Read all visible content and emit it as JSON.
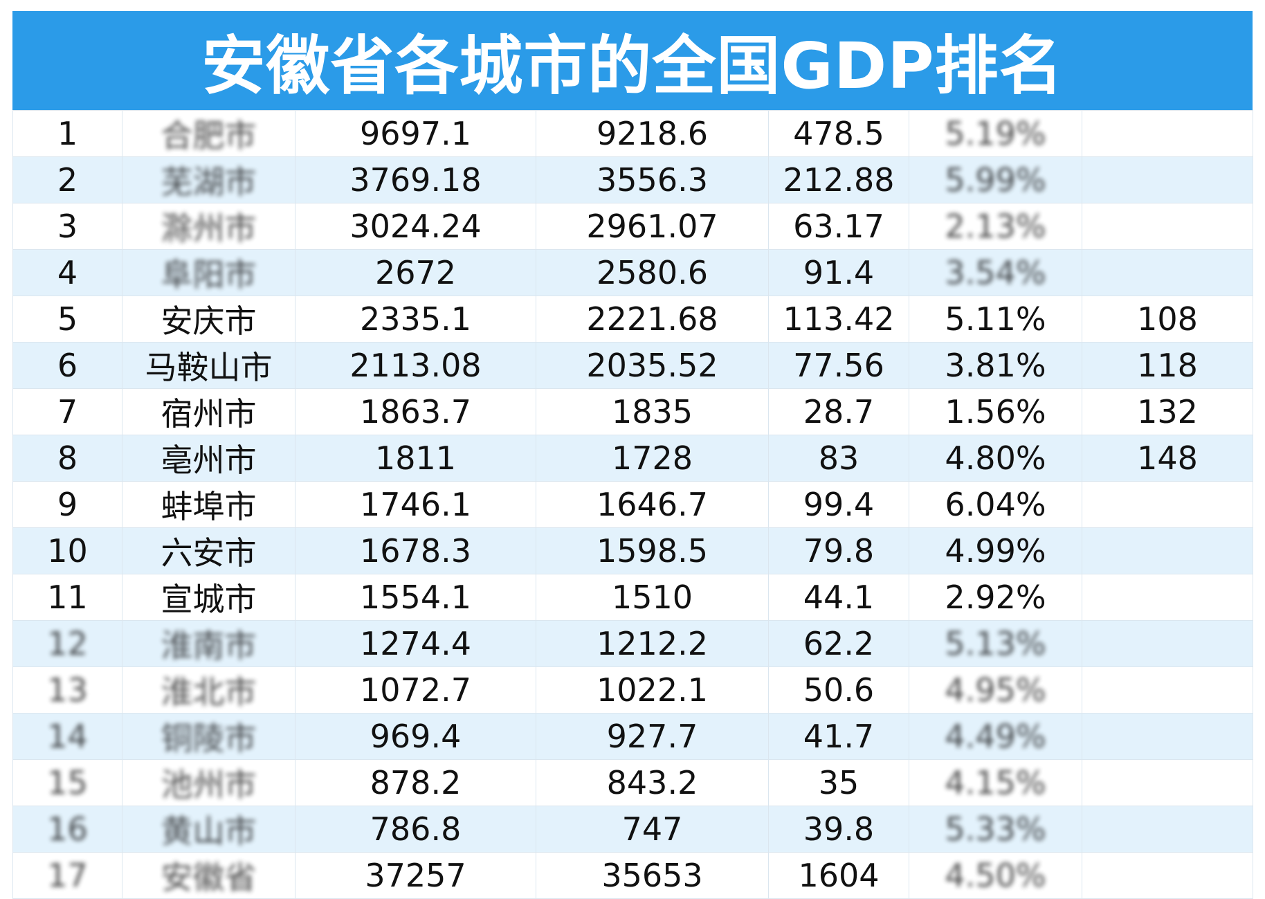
{
  "title": "安徽省各城市的全国GDP排名",
  "colors": {
    "header_bg": "#2b9be8",
    "row_alt_bg": "#e3f2fc",
    "border": "#dbe6ef"
  },
  "rows": [
    {
      "rank": "1",
      "city": "合肥市",
      "gdp_a": "9697.1",
      "gdp_b": "9218.6",
      "increase": "478.5",
      "rate": "5.19%",
      "national_rank": "",
      "blurred": [
        "city",
        "rate",
        "national_rank"
      ]
    },
    {
      "rank": "2",
      "city": "芜湖市",
      "gdp_a": "3769.18",
      "gdp_b": "3556.3",
      "increase": "212.88",
      "rate": "5.99%",
      "national_rank": "",
      "blurred": [
        "city",
        "rate",
        "national_rank"
      ]
    },
    {
      "rank": "3",
      "city": "滁州市",
      "gdp_a": "3024.24",
      "gdp_b": "2961.07",
      "increase": "63.17",
      "rate": "2.13%",
      "national_rank": "",
      "blurred": [
        "city",
        "rate",
        "national_rank"
      ]
    },
    {
      "rank": "4",
      "city": "阜阳市",
      "gdp_a": "2672",
      "gdp_b": "2580.6",
      "increase": "91.4",
      "rate": "3.54%",
      "national_rank": "",
      "blurred": [
        "city",
        "rate",
        "national_rank"
      ]
    },
    {
      "rank": "5",
      "city": "安庆市",
      "gdp_a": "2335.1",
      "gdp_b": "2221.68",
      "increase": "113.42",
      "rate": "5.11%",
      "national_rank": "108",
      "blurred": []
    },
    {
      "rank": "6",
      "city": "马鞍山市",
      "gdp_a": "2113.08",
      "gdp_b": "2035.52",
      "increase": "77.56",
      "rate": "3.81%",
      "national_rank": "118",
      "blurred": []
    },
    {
      "rank": "7",
      "city": "宿州市",
      "gdp_a": "1863.7",
      "gdp_b": "1835",
      "increase": "28.7",
      "rate": "1.56%",
      "national_rank": "132",
      "blurred": []
    },
    {
      "rank": "8",
      "city": "亳州市",
      "gdp_a": "1811",
      "gdp_b": "1728",
      "increase": "83",
      "rate": "4.80%",
      "national_rank": "148",
      "blurred": []
    },
    {
      "rank": "9",
      "city": "蚌埠市",
      "gdp_a": "1746.1",
      "gdp_b": "1646.7",
      "increase": "99.4",
      "rate": "6.04%",
      "national_rank": "",
      "blurred": []
    },
    {
      "rank": "10",
      "city": "六安市",
      "gdp_a": "1678.3",
      "gdp_b": "1598.5",
      "increase": "79.8",
      "rate": "4.99%",
      "national_rank": "",
      "blurred": []
    },
    {
      "rank": "11",
      "city": "宣城市",
      "gdp_a": "1554.1",
      "gdp_b": "1510",
      "increase": "44.1",
      "rate": "2.92%",
      "national_rank": "",
      "blurred": []
    },
    {
      "rank": "12",
      "city": "淮南市",
      "gdp_a": "1274.4",
      "gdp_b": "1212.2",
      "increase": "62.2",
      "rate": "5.13%",
      "national_rank": "",
      "blurred": [
        "rank",
        "city",
        "rate"
      ]
    },
    {
      "rank": "13",
      "city": "淮北市",
      "gdp_a": "1072.7",
      "gdp_b": "1022.1",
      "increase": "50.6",
      "rate": "4.95%",
      "national_rank": "",
      "blurred": [
        "rank",
        "city",
        "rate"
      ]
    },
    {
      "rank": "14",
      "city": "铜陵市",
      "gdp_a": "969.4",
      "gdp_b": "927.7",
      "increase": "41.7",
      "rate": "4.49%",
      "national_rank": "",
      "blurred": [
        "rank",
        "city",
        "rate"
      ]
    },
    {
      "rank": "15",
      "city": "池州市",
      "gdp_a": "878.2",
      "gdp_b": "843.2",
      "increase": "35",
      "rate": "4.15%",
      "national_rank": "",
      "blurred": [
        "rank",
        "city",
        "rate"
      ]
    },
    {
      "rank": "16",
      "city": "黄山市",
      "gdp_a": "786.8",
      "gdp_b": "747",
      "increase": "39.8",
      "rate": "5.33%",
      "national_rank": "",
      "blurred": [
        "rank",
        "city",
        "rate"
      ]
    },
    {
      "rank": "17",
      "city": "安徽省",
      "gdp_a": "37257",
      "gdp_b": "35653",
      "increase": "1604",
      "rate": "4.50%",
      "national_rank": "",
      "blurred": [
        "rank",
        "city",
        "rate"
      ]
    }
  ]
}
